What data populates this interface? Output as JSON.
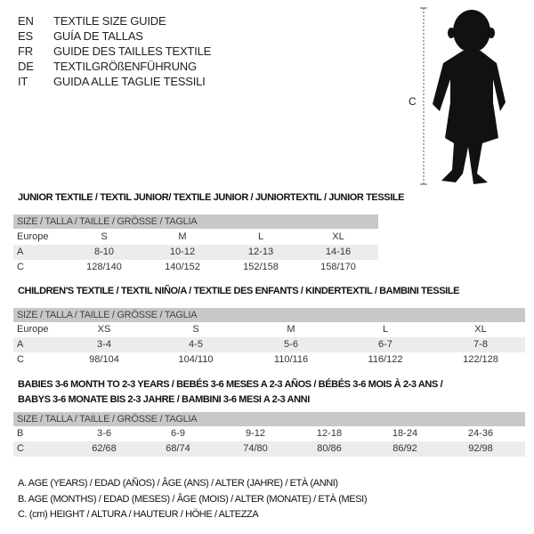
{
  "languages": [
    {
      "code": "EN",
      "text": "TEXTILE SIZE GUIDE"
    },
    {
      "code": "ES",
      "text": "GUÍA DE TALLAS"
    },
    {
      "code": "FR",
      "text": "GUIDE DES TAILLES TEXTILE"
    },
    {
      "code": "DE",
      "text": "TEXTILGRÖßENFÜHRUNG"
    },
    {
      "code": "IT",
      "text": "GUIDA ALLE TAGLIE TESSILI"
    }
  ],
  "figure": {
    "height_label": "C",
    "icon": "child-silhouette"
  },
  "junior": {
    "title": "JUNIOR TEXTILE / TEXTIL JUNIOR/ TEXTILE JUNIOR / JUNIORTEXTIL / JUNIOR TESSILE",
    "header": "SIZE / TALLA / TAILLE / GRÖSSE / TAGLIA",
    "rows": [
      {
        "label": "Europe",
        "cells": [
          "S",
          "M",
          "L",
          "XL"
        ]
      },
      {
        "label": "A",
        "cells": [
          "8-10",
          "10-12",
          "12-13",
          "14-16"
        ]
      },
      {
        "label": "C",
        "cells": [
          "128/140",
          "140/152",
          "152/158",
          "158/170"
        ]
      }
    ]
  },
  "children": {
    "title": "CHILDREN'S TEXTILE / TEXTIL NIÑO/A / TEXTILE DES ENFANTS / KINDERTEXTIL / BAMBINI TESSILE",
    "header": "SIZE / TALLA / TAILLE / GRÖSSE / TAGLIA",
    "rows": [
      {
        "label": "Europe",
        "cells": [
          "XS",
          "S",
          "M",
          "L",
          "XL"
        ]
      },
      {
        "label": "A",
        "cells": [
          "3-4",
          "4-5",
          "5-6",
          "6-7",
          "7-8"
        ]
      },
      {
        "label": "C",
        "cells": [
          "98/104",
          "104/110",
          "110/116",
          "116/122",
          "122/128"
        ]
      }
    ]
  },
  "babies": {
    "title_line1": "BABIES 3-6 MONTH TO 2-3 YEARS / BEBÉS 3-6 MESES A 2-3 AÑOS / BÉBÉS 3-6 MOIS À 2-3 ANS /",
    "title_line2": "BABYS 3-6 MONATE BIS 2-3 JAHRE / BAMBINI 3-6 MESI A 2-3 ANNI",
    "header": "SIZE / TALLA / TAILLE / GRÖSSE / TAGLIA",
    "rows": [
      {
        "label": "B",
        "cells": [
          "3-6",
          "6-9",
          "9-12",
          "12-18",
          "18-24",
          "24-36"
        ]
      },
      {
        "label": "C",
        "cells": [
          "62/68",
          "68/74",
          "74/80",
          "80/86",
          "86/92",
          "92/98"
        ]
      }
    ]
  },
  "legend": [
    "A. AGE (YEARS) / EDAD (AÑOS) / ÂGE (ANS) / ALTER (JAHRE) / ETÀ (ANNI)",
    "B. AGE (MONTHS) / EDAD (MESES) / ÂGE (MOIS) / ALTER (MONATE) / ETÀ (MESI)",
    "C. (cm) HEIGHT / ALTURA / HAUTEUR / HÖHE / ALTEZZA"
  ]
}
